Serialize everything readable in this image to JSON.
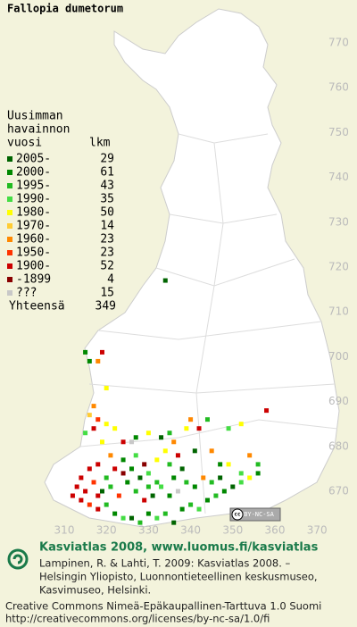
{
  "title": "Fallopia dumetorum",
  "legend": {
    "header": [
      "Uusimman",
      "havainnon",
      "vuosi"
    ],
    "count_header": "lkm",
    "rows": [
      {
        "label": "2005-",
        "count": 29,
        "color": "#006400"
      },
      {
        "label": "2000-",
        "count": 61,
        "color": "#008800"
      },
      {
        "label": "1995-",
        "count": 43,
        "color": "#22bb22"
      },
      {
        "label": "1990-",
        "count": 35,
        "color": "#44dd44"
      },
      {
        "label": "1980-",
        "count": 50,
        "color": "#ffff00"
      },
      {
        "label": "1970-",
        "count": 14,
        "color": "#ffcc33"
      },
      {
        "label": "1960-",
        "count": 23,
        "color": "#ff8800"
      },
      {
        "label": "1950-",
        "count": 23,
        "color": "#ff3300"
      },
      {
        "label": "1900-",
        "count": 52,
        "color": "#cc0000"
      },
      {
        "label": "-1899",
        "count": 4,
        "color": "#880000"
      },
      {
        "label": "???",
        "count": 15,
        "color": "#c8c8c8"
      }
    ],
    "total_label": "Yhteensä",
    "total": 349
  },
  "map": {
    "yticks": [
      770,
      760,
      750,
      740,
      730,
      720,
      710,
      700,
      690,
      680,
      670
    ],
    "xticks": [
      310,
      320,
      330,
      340,
      350,
      360,
      370
    ],
    "squares": [
      [
        334,
        717,
        0
      ],
      [
        319,
        701,
        8
      ],
      [
        315,
        701,
        1
      ],
      [
        316,
        699,
        1
      ],
      [
        318,
        699,
        6
      ],
      [
        320,
        693,
        4
      ],
      [
        317,
        689,
        6
      ],
      [
        316,
        687,
        5
      ],
      [
        318,
        686,
        7
      ],
      [
        320,
        685,
        4
      ],
      [
        317,
        684,
        8
      ],
      [
        315,
        683,
        3
      ],
      [
        322,
        684,
        4
      ],
      [
        319,
        681,
        4
      ],
      [
        324,
        681,
        8
      ],
      [
        327,
        682,
        1
      ],
      [
        330,
        683,
        4
      ],
      [
        333,
        682,
        0
      ],
      [
        335,
        683,
        2
      ],
      [
        339,
        684,
        4
      ],
      [
        342,
        684,
        8
      ],
      [
        340,
        686,
        6
      ],
      [
        344,
        686,
        2
      ],
      [
        349,
        684,
        3
      ],
      [
        352,
        685,
        4
      ],
      [
        358,
        688,
        8
      ],
      [
        354,
        678,
        6
      ],
      [
        356,
        676,
        2
      ],
      [
        352,
        674,
        3
      ],
      [
        347,
        676,
        1
      ],
      [
        345,
        679,
        6
      ],
      [
        341,
        679,
        0
      ],
      [
        337,
        678,
        8
      ],
      [
        335,
        676,
        2
      ],
      [
        332,
        677,
        4
      ],
      [
        329,
        676,
        9
      ],
      [
        327,
        678,
        3
      ],
      [
        324,
        677,
        1
      ],
      [
        321,
        678,
        6
      ],
      [
        318,
        676,
        8
      ],
      [
        316,
        675,
        8
      ],
      [
        314,
        673,
        8
      ],
      [
        313,
        671,
        8
      ],
      [
        312,
        669,
        8
      ],
      [
        314,
        668,
        8
      ],
      [
        316,
        667,
        7
      ],
      [
        318,
        666,
        8
      ],
      [
        320,
        667,
        2
      ],
      [
        322,
        665,
        1
      ],
      [
        324,
        664,
        3
      ],
      [
        326,
        664,
        0
      ],
      [
        328,
        663,
        2
      ],
      [
        330,
        665,
        1
      ],
      [
        332,
        664,
        3
      ],
      [
        334,
        665,
        2
      ],
      [
        336,
        663,
        0
      ],
      [
        338,
        666,
        1
      ],
      [
        340,
        667,
        2
      ],
      [
        342,
        666,
        3
      ],
      [
        344,
        668,
        1
      ],
      [
        346,
        669,
        2
      ],
      [
        348,
        670,
        1
      ],
      [
        350,
        671,
        0
      ],
      [
        352,
        672,
        3
      ],
      [
        354,
        673,
        4
      ],
      [
        356,
        674,
        1
      ],
      [
        319,
        670,
        0
      ],
      [
        321,
        671,
        2
      ],
      [
        323,
        669,
        7
      ],
      [
        325,
        672,
        1
      ],
      [
        327,
        670,
        2
      ],
      [
        329,
        668,
        8
      ],
      [
        331,
        669,
        0
      ],
      [
        333,
        671,
        3
      ],
      [
        335,
        669,
        1
      ],
      [
        337,
        670,
        10
      ],
      [
        339,
        672,
        2
      ],
      [
        341,
        671,
        1
      ],
      [
        343,
        673,
        6
      ],
      [
        345,
        672,
        2
      ],
      [
        347,
        673,
        0
      ],
      [
        320,
        673,
        2
      ],
      [
        322,
        675,
        8
      ],
      [
        324,
        674,
        9
      ],
      [
        326,
        675,
        1
      ],
      [
        328,
        673,
        0
      ],
      [
        330,
        674,
        3
      ],
      [
        332,
        672,
        2
      ],
      [
        349,
        676,
        4
      ],
      [
        330,
        671,
        2
      ],
      [
        315,
        670,
        8
      ],
      [
        317,
        672,
        7
      ],
      [
        318,
        669,
        8
      ],
      [
        336,
        673,
        1
      ],
      [
        338,
        675,
        0
      ],
      [
        334,
        679,
        4
      ],
      [
        326,
        681,
        10
      ],
      [
        336,
        681,
        6
      ]
    ]
  },
  "badge": {
    "cc": "cc",
    "license": "BY-NC-SA"
  },
  "footer": {
    "heading": "Kasviatlas 2008, www.luomus.fi/kasviatlas",
    "citation": [
      "Lampinen, R. & Lahti, T. 2009: Kasviatlas 2008. –",
      "Helsingin Yliopisto, Luonnontieteellinen keskusmuseo,",
      "Kasvimuseo, Helsinki."
    ],
    "license": [
      "Creative Commons Nimeä-Epäkaupallinen-Tarttuva 1.0 Suomi",
      "http://creativecommons.org/licenses/by-nc-sa/1.0/fi"
    ]
  }
}
